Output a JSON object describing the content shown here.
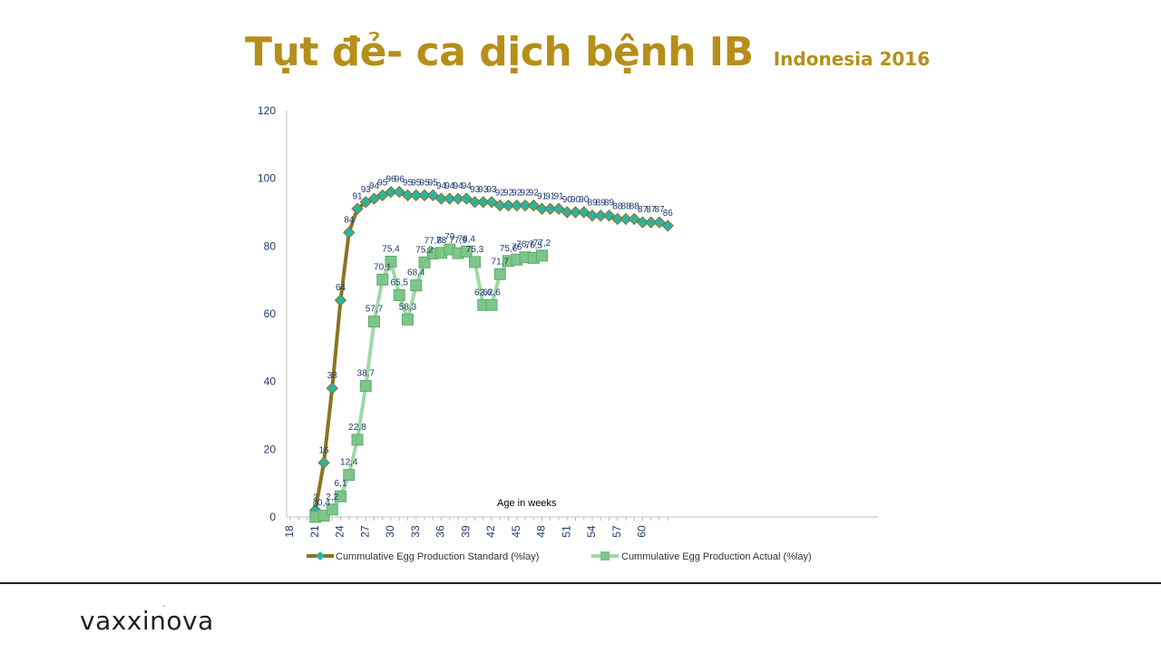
{
  "title": "Tụt đẻ- ca dịch bệnh IB",
  "subtitle": "Indonesia 2016",
  "logo_text": "vaxxinova",
  "colors": {
    "accent": "#b58f1a",
    "standard_line": "#8b7420",
    "standard_marker": "#2ab3a6",
    "actual_line": "#9fd8a6",
    "actual_marker": "#7cc68a",
    "label": "#1f3a6e"
  },
  "chart_data": {
    "type": "line",
    "xlabel": "Age in weeks",
    "ylabel": "",
    "xlim": [
      18,
      64
    ],
    "ylim": [
      0,
      120
    ],
    "x_ticks": [
      "18",
      "21",
      "24",
      "27",
      "30",
      "33",
      "36",
      "39",
      "42",
      "45",
      "48",
      "51",
      "54",
      "57",
      "60"
    ],
    "y_ticks": [
      "0",
      "20",
      "40",
      "60",
      "80",
      "100",
      "120"
    ],
    "legend_position": "bottom",
    "series": [
      {
        "name": "Cummulative Egg Production Standard (%lay)",
        "x": [
          21,
          22,
          23,
          24,
          25,
          26,
          27,
          28,
          29,
          30,
          31,
          32,
          33,
          34,
          35,
          36,
          37,
          38,
          39,
          40,
          41,
          42,
          43,
          44,
          45,
          46,
          47,
          48,
          49,
          50,
          51,
          52,
          53,
          54,
          55,
          56,
          57,
          58,
          59,
          60,
          61,
          62,
          63
        ],
        "values": [
          2,
          16,
          38,
          64,
          84,
          91,
          93,
          94,
          95,
          96,
          96,
          95,
          95,
          95,
          95,
          94,
          94,
          94,
          94,
          93,
          93,
          93,
          92,
          92,
          92,
          92,
          92,
          91,
          91,
          91,
          90,
          90,
          90,
          89,
          89,
          89,
          88,
          88,
          88,
          87,
          87,
          87,
          86
        ],
        "labels": [
          "2",
          "16",
          "38",
          "64",
          "84",
          "91",
          "93",
          "94",
          "95",
          "96",
          "96",
          "95",
          "95",
          "95",
          "95",
          "94",
          "94",
          "94",
          "94",
          "93",
          "93",
          "93",
          "92",
          "92",
          "92",
          "92",
          "92",
          "91",
          "91",
          "91",
          "90",
          "90",
          "90",
          "89",
          "89",
          "89",
          "88",
          "88",
          "88",
          "87",
          "87",
          "87",
          "86"
        ]
      },
      {
        "name": "Cummulative Egg Production Actual (%lay)",
        "x": [
          21,
          22,
          23,
          24,
          25,
          26,
          27,
          28,
          29,
          30,
          31,
          32,
          33,
          34,
          35,
          36,
          37,
          38,
          39,
          40,
          41,
          42,
          43,
          44,
          45,
          46,
          47,
          48
        ],
        "values": [
          0,
          0.4,
          2.2,
          6.1,
          12.4,
          22.8,
          38.7,
          57.7,
          70.1,
          75.4,
          65.5,
          58.3,
          68.4,
          75.2,
          77.8,
          78,
          79,
          77.9,
          78.4,
          75.3,
          62.6,
          62.6,
          71.7,
          75.6,
          76,
          76.7,
          76.5,
          77.2
        ],
        "labels": [
          "0",
          "0,4",
          "2,2",
          "6,1",
          "12,4",
          "22,8",
          "38,7",
          "57,7",
          "70,1",
          "75,4",
          "65,5",
          "58,3",
          "68,4",
          "75,2",
          "77,8",
          "78",
          "79",
          "77,9",
          "78,4",
          "75,3",
          "62,6",
          "62,6",
          "71,7",
          "75,6",
          "76",
          "76,7",
          "76,5",
          "77,2"
        ]
      }
    ]
  }
}
